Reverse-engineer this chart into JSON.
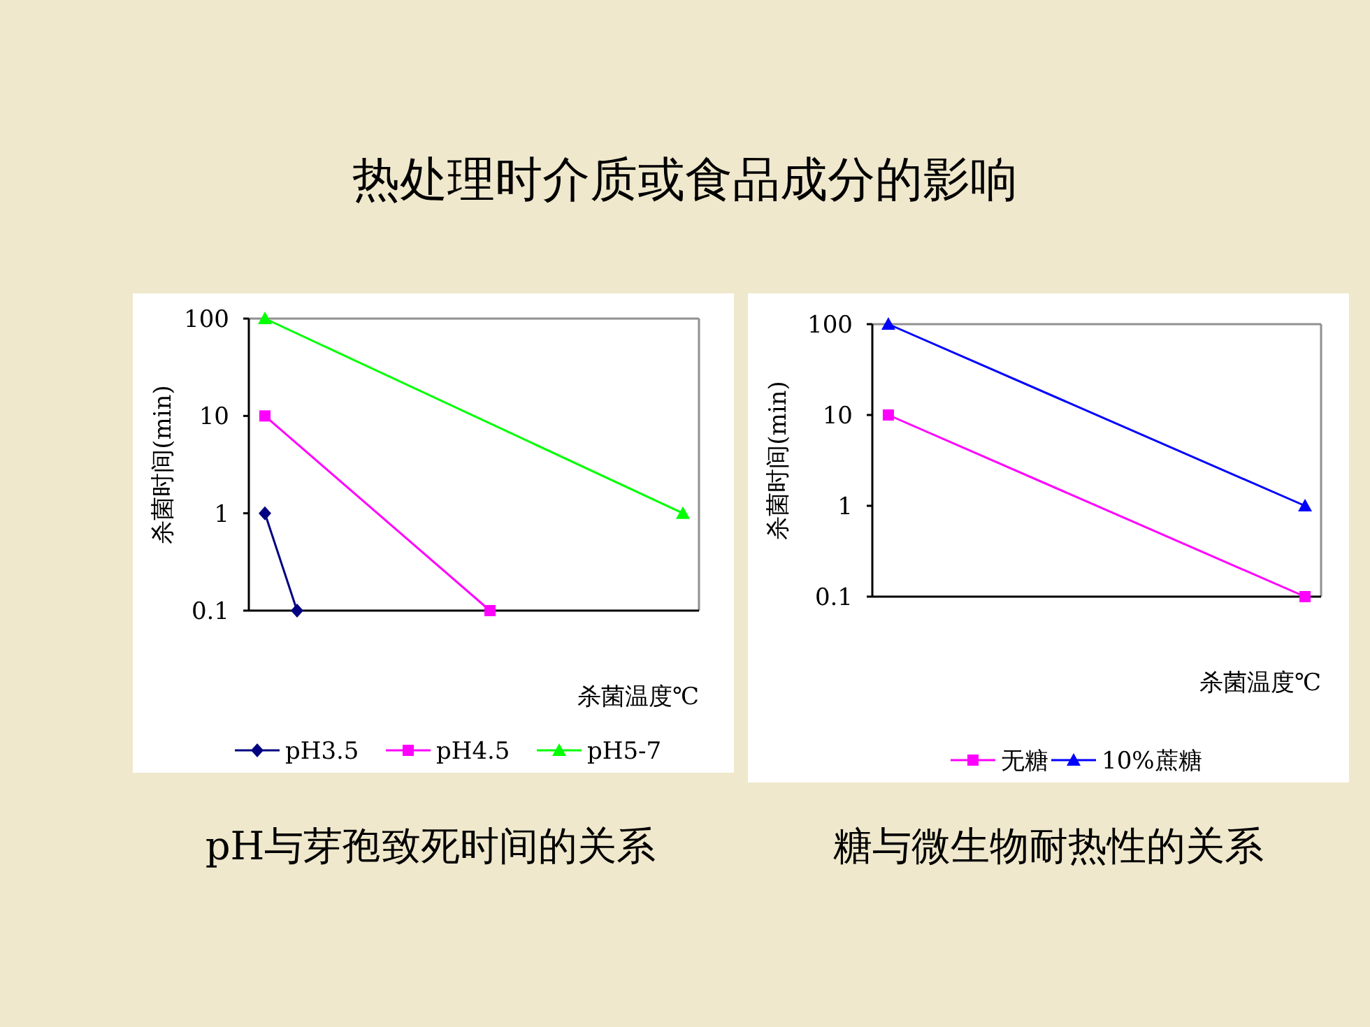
{
  "chart_data": [
    {
      "type": "line",
      "title": "pH与芽孢致死时间的关系",
      "annotations": [
        "热处理时介质或食品成分的影响"
      ],
      "xlabel": "杀菌温度℃",
      "ylabel": "杀菌时间(min)",
      "log": "y",
      "legend": "bottom",
      "tick_labels": "y",
      "ylim": [
        0.1,
        100
      ],
      "yticks": [
        0.1,
        1,
        10,
        100
      ],
      "categories": [
        null,
        null,
        null,
        null,
        null,
        null,
        null,
        null,
        null,
        null,
        null,
        null,
        null,
        null
      ],
      "series": [
        {
          "name": "pH3.5",
          "color": "#000080",
          "marker": "diamond",
          "values": [
            1,
            0.1,
            null,
            null,
            null,
            null,
            null,
            null,
            null,
            null,
            null,
            null,
            null,
            null
          ]
        },
        {
          "name": "pH4.5",
          "color": "#ff00ff",
          "marker": "square",
          "values": [
            10,
            null,
            null,
            null,
            null,
            null,
            null,
            0.1,
            null,
            null,
            null,
            null,
            null,
            null
          ]
        },
        {
          "name": "pH5-7",
          "color": "#00ff00",
          "marker": "triangle",
          "values": [
            100,
            null,
            null,
            null,
            null,
            null,
            null,
            null,
            null,
            null,
            null,
            null,
            null,
            1
          ]
        }
      ]
    },
    {
      "type": "line",
      "title": "糖与微生物耐热性的关系",
      "xlabel": "杀菌温度℃",
      "ylabel": "杀菌时间(min)",
      "log": "y",
      "legend": "bottom",
      "tick_labels": "y",
      "ylim": [
        0.1,
        100
      ],
      "yticks": [
        0.1,
        1,
        10,
        100
      ],
      "categories": [
        null,
        null,
        null,
        null,
        null,
        null,
        null,
        null,
        null,
        null,
        null,
        null,
        null,
        null
      ],
      "series": [
        {
          "name": "无糖",
          "color": "#ff00ff",
          "marker": "square",
          "values": [
            10,
            null,
            null,
            null,
            null,
            null,
            null,
            null,
            null,
            null,
            null,
            null,
            null,
            0.1
          ]
        },
        {
          "name": "10%蔗糖",
          "color": "#0000ff",
          "marker": "triangle",
          "values": [
            100,
            null,
            null,
            null,
            null,
            null,
            null,
            null,
            null,
            null,
            null,
            null,
            null,
            1
          ]
        }
      ]
    }
  ]
}
